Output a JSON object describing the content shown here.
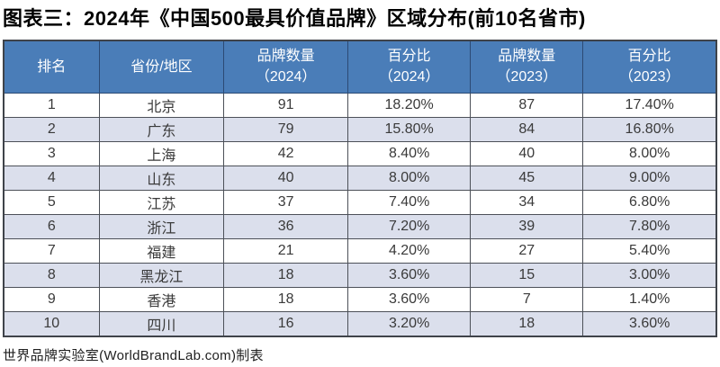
{
  "title": "图表三：2024年《中国500最具价值品牌》区域分布(前10名省市)",
  "footer": "世界品牌实验室(WorldBrandLab.com)制表",
  "colors": {
    "header_bg": "#4a7db8",
    "header_text": "#ffffff",
    "row_alt_bg": "#dbdfec",
    "grid_border": "#4c5058",
    "body_text": "#3a3a3a"
  },
  "chart_data": {
    "type": "table",
    "title": "图表三：2024年《中国500最具价值品牌》区域分布(前10名省市)",
    "source_note": "世界品牌实验室(WorldBrandLab.com)制表",
    "columns": [
      "排名",
      "省份/地区",
      "品牌数量\n（2024）",
      "百分比\n（2024）",
      "品牌数量\n（2023）",
      "百分比\n（2023）"
    ],
    "rows": [
      [
        "1",
        "北京",
        "91",
        "18.20%",
        "87",
        "17.40%"
      ],
      [
        "2",
        "广东",
        "79",
        "15.80%",
        "84",
        "16.80%"
      ],
      [
        "3",
        "上海",
        "42",
        "8.40%",
        "40",
        "8.00%"
      ],
      [
        "4",
        "山东",
        "40",
        "8.00%",
        "45",
        "9.00%"
      ],
      [
        "5",
        "江苏",
        "37",
        "7.40%",
        "34",
        "6.80%"
      ],
      [
        "6",
        "浙江",
        "36",
        "7.20%",
        "39",
        "7.80%"
      ],
      [
        "7",
        "福建",
        "21",
        "4.20%",
        "27",
        "5.40%"
      ],
      [
        "8",
        "黑龙江",
        "18",
        "3.60%",
        "15",
        "3.00%"
      ],
      [
        "9",
        "香港",
        "18",
        "3.60%",
        "7",
        "1.40%"
      ],
      [
        "10",
        "四川",
        "16",
        "3.20%",
        "18",
        "3.60%"
      ]
    ]
  }
}
